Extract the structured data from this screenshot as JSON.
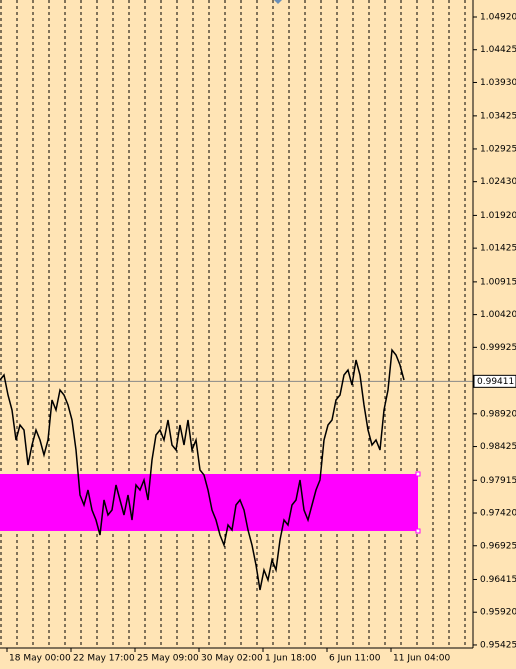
{
  "chart_data": {
    "type": "line",
    "x": [
      0,
      1,
      2,
      3,
      4,
      5,
      6,
      7,
      8,
      9,
      10,
      11,
      12,
      13,
      14,
      15,
      16,
      17,
      18,
      19,
      20,
      21,
      22,
      23,
      24,
      25,
      26,
      27,
      28,
      29,
      30,
      31,
      32,
      33,
      34,
      35,
      36,
      37,
      38,
      39,
      40,
      41,
      42,
      43,
      44,
      45,
      46,
      47,
      48,
      49,
      50,
      51,
      52,
      53,
      54,
      55,
      56,
      57,
      58,
      59,
      60,
      61,
      62,
      63,
      64,
      65,
      66,
      67,
      68,
      69,
      70,
      71,
      72,
      73,
      74,
      75,
      76,
      77,
      78,
      79,
      80,
      81,
      82,
      83,
      84,
      85,
      86,
      87,
      88,
      89,
      90,
      91,
      92,
      93,
      94,
      95,
      96,
      97,
      98,
      99,
      100,
      101
    ],
    "series": [
      {
        "color": "#000000",
        "values": [
          0.99431,
          0.99507,
          0.99205,
          0.98978,
          0.98524,
          0.98751,
          0.98675,
          0.98146,
          0.98449,
          0.98675,
          0.98524,
          0.98297,
          0.98524,
          0.99129,
          0.98978,
          0.9928,
          0.99205,
          0.99053,
          0.98827,
          0.98373,
          0.97693,
          0.97541,
          0.97768,
          0.97466,
          0.97315,
          0.97088,
          0.97617,
          0.9739,
          0.97466,
          0.97844,
          0.97617,
          0.9739,
          0.97693,
          0.97315,
          0.97844,
          0.97768,
          0.97919,
          0.97617,
          0.98222,
          0.986,
          0.98675,
          0.98524,
          0.98827,
          0.98449,
          0.98373,
          0.98751,
          0.98449,
          0.98827,
          0.98373,
          0.98524,
          0.98071,
          0.97995,
          0.97768,
          0.97466,
          0.97315,
          0.97088,
          0.96937,
          0.97239,
          0.97163,
          0.97541,
          0.97617,
          0.97466,
          0.97163,
          0.96937,
          0.96634,
          0.96256,
          0.96559,
          0.96407,
          0.9671,
          0.96559,
          0.97012,
          0.97315,
          0.97239,
          0.97541,
          0.97617,
          0.97919,
          0.97466,
          0.97315,
          0.97541,
          0.97768,
          0.97919,
          0.98524,
          0.98751,
          0.98827,
          0.99129,
          0.99205,
          0.99507,
          0.99583,
          0.99356,
          0.99734,
          0.99507,
          0.99053,
          0.98675,
          0.98449,
          0.98524,
          0.98373,
          0.98978,
          0.9928,
          0.99885,
          0.99809,
          0.99658,
          0.99431
        ]
      }
    ],
    "xlim": [
      0,
      118.25
    ],
    "xticks": [
      {
        "value": 1.75,
        "label": "18 May 00:00"
      },
      {
        "value": 17.75,
        "label": "22 May 17:00"
      },
      {
        "value": 33.75,
        "label": "25 May 09:00"
      },
      {
        "value": 49.75,
        "label": "30 May 02:00"
      },
      {
        "value": 65.75,
        "label": "1 Jun 18:00"
      },
      {
        "value": 81.75,
        "label": "6 Jun 11:00"
      },
      {
        "value": 97.75,
        "label": "11 Jun 04:00"
      }
    ],
    "ylim": [
      0.95379,
      1.05177
    ],
    "yticks": [
      {
        "value": 1.0492,
        "label": "1.04920"
      },
      1.04425,
      {
        "value": 1.0393,
        "label": "1.03930"
      },
      1.03425,
      1.02925,
      {
        "value": 1.0243,
        "label": "1.02430"
      },
      {
        "value": 1.0192,
        "label": "1.01920"
      },
      1.01425,
      1.00915,
      {
        "value": 1.0042,
        "label": "1.00420"
      },
      0.99925,
      {
        "value": 0.9892,
        "label": "0.98920"
      },
      0.98425,
      0.97915,
      {
        "value": 0.9742,
        "label": "0.97420"
      },
      0.96925,
      0.96415,
      {
        "value": 0.9592,
        "label": "0.95920"
      },
      0.95425
    ],
    "current_price": 0.99411,
    "zone": {
      "xlim": [
        0,
        104.5
      ],
      "ylim": [
        0.97148,
        0.9801
      ],
      "color": "#ff00ff"
    },
    "grid": true
  }
}
